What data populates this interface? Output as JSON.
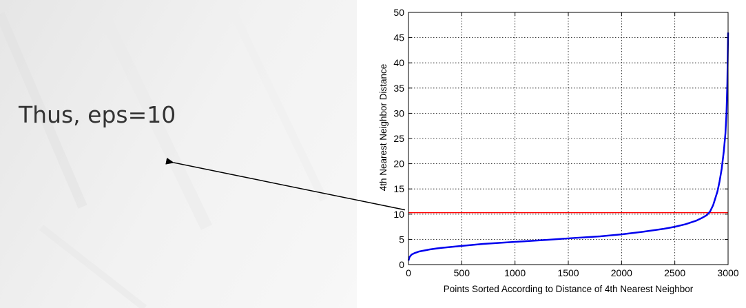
{
  "annotation": {
    "text": "Thus, eps=10",
    "arrow_color": "#000000"
  },
  "chart_data": {
    "type": "line",
    "title": "",
    "xlabel": "Points Sorted According to Distance of 4th Nearest Neighbor",
    "ylabel": "4th Nearest Neighbor Distance",
    "xlim": [
      0,
      3000
    ],
    "ylim": [
      0,
      50
    ],
    "xticks": [
      0,
      500,
      1000,
      1500,
      2000,
      2500,
      3000
    ],
    "yticks": [
      0,
      5,
      10,
      15,
      20,
      25,
      30,
      35,
      40,
      45,
      50
    ],
    "grid": true,
    "grid_style": "dotted",
    "series": [
      {
        "color": "#0000ee",
        "x": [
          0,
          10,
          30,
          60,
          100,
          200,
          300,
          500,
          700,
          1000,
          1300,
          1500,
          1800,
          2000,
          2200,
          2400,
          2500,
          2600,
          2700,
          2750,
          2800,
          2830,
          2860,
          2900,
          2920,
          2940,
          2960,
          2975,
          2985,
          2993,
          3000
        ],
        "y": [
          0.8,
          1.5,
          2.0,
          2.3,
          2.6,
          3.0,
          3.3,
          3.7,
          4.1,
          4.5,
          4.9,
          5.2,
          5.6,
          6.0,
          6.5,
          7.1,
          7.5,
          8.0,
          8.7,
          9.2,
          9.8,
          10.5,
          11.8,
          14.5,
          16.5,
          19.0,
          22.5,
          26.0,
          30.0,
          36.0,
          46.0
        ]
      }
    ],
    "reference_line": {
      "y": 10.3,
      "color": "#ff0000"
    }
  }
}
